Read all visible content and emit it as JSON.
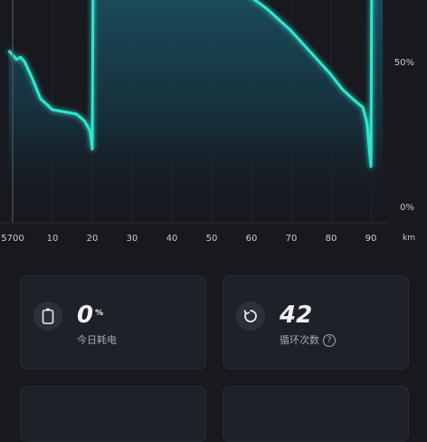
{
  "chart_data": {
    "type": "area",
    "x_tick_labels": [
      "5700",
      "10",
      "20",
      "30",
      "40",
      "50",
      "60",
      "70",
      "80",
      "90"
    ],
    "x_unit": "km",
    "y_tick_labels": [
      "50%",
      "0%"
    ],
    "xlim": [
      -1,
      94
    ],
    "ylim": [
      0,
      100
    ],
    "x": [
      -1,
      0,
      1,
      2,
      3,
      5,
      7,
      10,
      13,
      16,
      18,
      19.5,
      20,
      20.2,
      22,
      23,
      24,
      30,
      40,
      44,
      47,
      50,
      52,
      55,
      58,
      61,
      64,
      67,
      70,
      73,
      75,
      77,
      80,
      83,
      86,
      88,
      89,
      90,
      90.2,
      93
    ],
    "y": [
      63,
      61,
      59,
      60,
      58,
      50,
      41,
      36,
      35,
      34,
      31,
      26,
      18,
      100,
      100,
      100,
      100,
      100,
      100,
      100,
      100,
      100,
      98,
      94,
      90,
      86,
      82,
      77,
      72,
      66,
      62,
      58,
      52,
      45,
      40,
      37,
      30,
      10,
      100,
      100
    ],
    "line_color": "#2ee6d0",
    "grid": true
  },
  "stats": [
    {
      "icon": "battery-icon",
      "value": "0",
      "unit": "%",
      "caption": "今日耗电"
    },
    {
      "icon": "refresh-icon",
      "value": "42",
      "unit": "",
      "caption": "循环次数",
      "help": "?"
    }
  ]
}
